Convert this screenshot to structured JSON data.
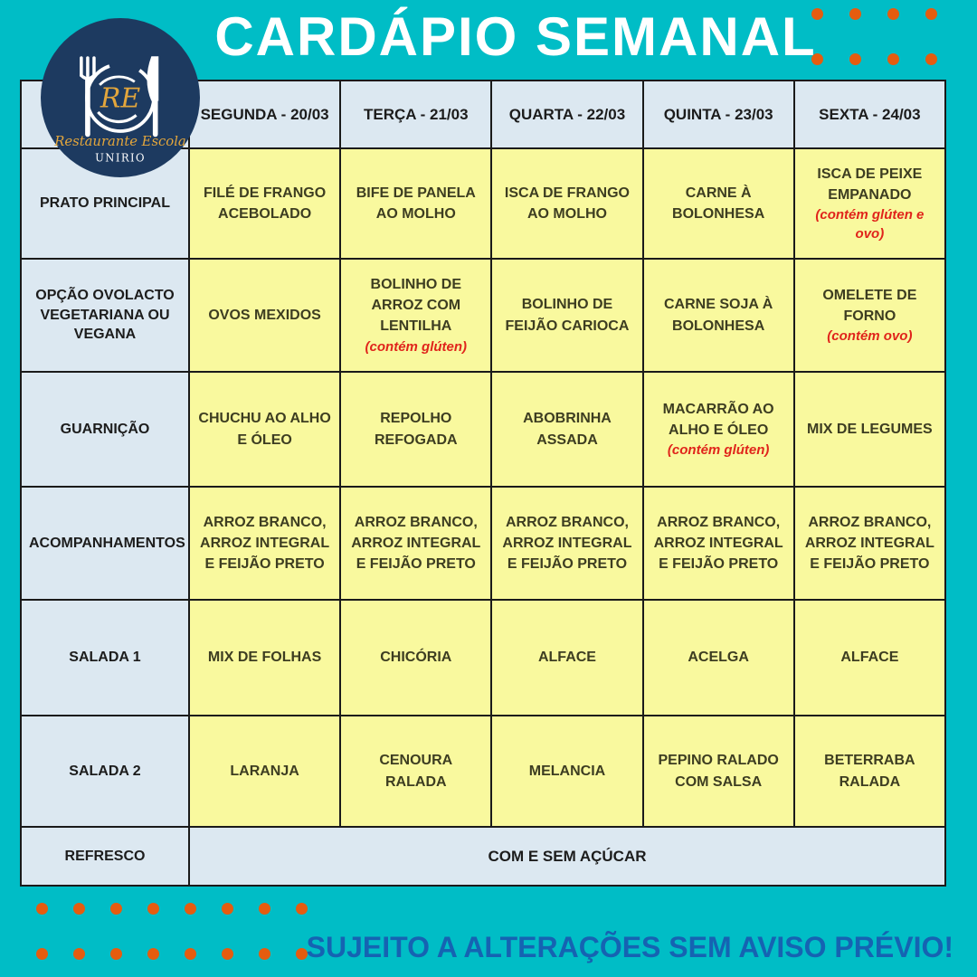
{
  "title": "CARDÁPIO SEMANAL",
  "logo": {
    "initials": "RE",
    "name": "Restaurante Escola",
    "org": "UNIRIO"
  },
  "footer": "SUJEITO A ALTERAÇÕES SEM AVISO PRÉVIO!",
  "colors": {
    "teal": "#00bdc6",
    "cell_yellow": "#f9f99e",
    "label_blue": "#dce8f1",
    "dot_orange": "#e55c0f",
    "logo_navy": "#1d3a60",
    "logo_gold": "#e3a63c",
    "footer_blue": "#1563b2",
    "allergen_red": "#e0241b",
    "border_dark": "#1a1a1a",
    "cell_text": "#3d3d21",
    "label_text": "#1c1c1c",
    "title_white": "#ffffff"
  },
  "decor": {
    "top_right_dots": {
      "rows": 2,
      "cols": 4
    },
    "bottom_left_dots": {
      "rows": 2,
      "cols": 8
    }
  },
  "table": {
    "days": [
      "SEGUNDA - 20/03",
      "TERÇA - 21/03",
      "QUARTA - 22/03",
      "QUINTA - 23/03",
      "SEXTA - 24/03"
    ],
    "rows": [
      {
        "label": "PRATO PRINCIPAL",
        "cells": [
          {
            "text": "FILÉ DE FRANGO ACEBOLADO"
          },
          {
            "text": "BIFE DE PANELA AO MOLHO"
          },
          {
            "text": "ISCA DE FRANGO AO MOLHO"
          },
          {
            "text": "CARNE À BOLONHESA"
          },
          {
            "text": "ISCA DE PEIXE EMPANADO",
            "note": "(contém glúten e ovo)"
          }
        ]
      },
      {
        "label": "OPÇÃO OVOLACTO VEGETARIANA OU VEGANA",
        "cells": [
          {
            "text": "OVOS MEXIDOS"
          },
          {
            "text": "BOLINHO DE ARROZ COM LENTILHA",
            "note": "(contém glúten)"
          },
          {
            "text": "BOLINHO DE FEIJÃO CARIOCA"
          },
          {
            "text": "CARNE SOJA À BOLONHESA"
          },
          {
            "text": "OMELETE DE FORNO",
            "note": "(contém ovo)"
          }
        ]
      },
      {
        "label": "GUARNIÇÃO",
        "cells": [
          {
            "text": "CHUCHU AO ALHO E ÓLEO"
          },
          {
            "text": "REPOLHO REFOGADA"
          },
          {
            "text": "ABOBRINHA ASSADA"
          },
          {
            "text": "MACARRÃO AO ALHO E ÓLEO",
            "note": "(contém glúten)"
          },
          {
            "text": "MIX DE LEGUMES"
          }
        ]
      },
      {
        "label": "ACOMPANHAMENTOS",
        "cells": [
          {
            "text": "ARROZ BRANCO, ARROZ INTEGRAL E FEIJÃO PRETO"
          },
          {
            "text": "ARROZ BRANCO, ARROZ INTEGRAL E FEIJÃO PRETO"
          },
          {
            "text": "ARROZ BRANCO, ARROZ INTEGRAL E FEIJÃO PRETO"
          },
          {
            "text": "ARROZ BRANCO, ARROZ INTEGRAL E FEIJÃO PRETO"
          },
          {
            "text": "ARROZ BRANCO, ARROZ INTEGRAL E FEIJÃO PRETO"
          }
        ]
      },
      {
        "label": "SALADA 1",
        "cells": [
          {
            "text": "MIX DE FOLHAS"
          },
          {
            "text": "CHICÓRIA"
          },
          {
            "text": "ALFACE"
          },
          {
            "text": "ACELGA"
          },
          {
            "text": "ALFACE"
          }
        ]
      },
      {
        "label": "SALADA 2",
        "cells": [
          {
            "text": "LARANJA"
          },
          {
            "text": "CENOURA RALADA"
          },
          {
            "text": "MELANCIA"
          },
          {
            "text": "PEPINO RALADO COM SALSA"
          },
          {
            "text": "BETERRABA RALADA"
          }
        ]
      },
      {
        "label": "REFRESCO",
        "merged_text": "COM E SEM AÇÚCAR"
      }
    ]
  }
}
